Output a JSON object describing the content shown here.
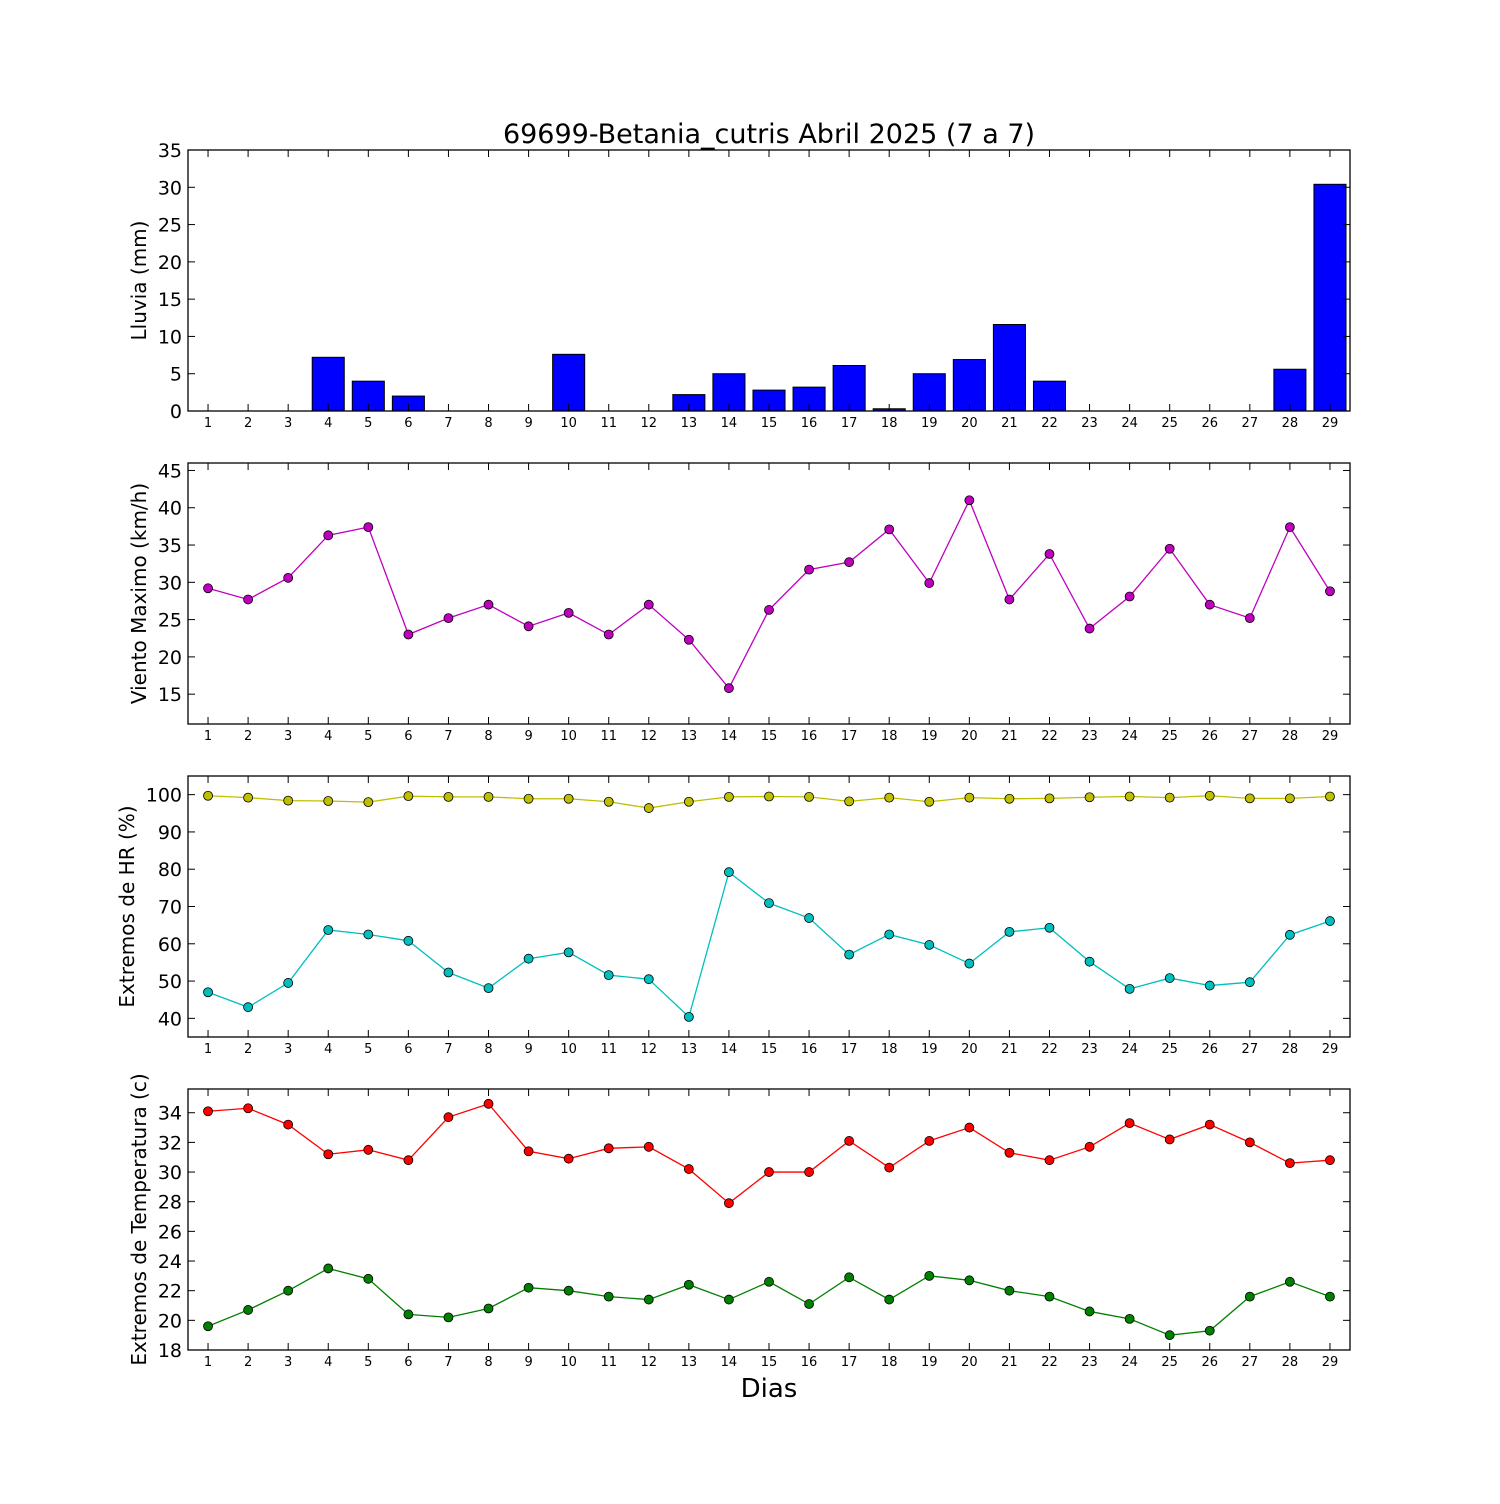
{
  "figure": {
    "title": "69699-Betania_cutris Abril 2025  (7 a 7)",
    "xlabel": "Dias"
  },
  "chart_data": [
    {
      "type": "bar",
      "ylabel": "Lluvia (mm)",
      "ylim": [
        0,
        35
      ],
      "yticks": [
        0,
        5,
        10,
        15,
        20,
        25,
        30,
        35
      ],
      "x": [
        1,
        2,
        3,
        4,
        5,
        6,
        7,
        8,
        9,
        10,
        11,
        12,
        13,
        14,
        15,
        16,
        17,
        18,
        19,
        20,
        21,
        22,
        23,
        24,
        25,
        26,
        27,
        28,
        29
      ],
      "series": [
        {
          "color": "#0000ff",
          "values": [
            0,
            0,
            0,
            7.2,
            4.0,
            2.0,
            0,
            0,
            0,
            7.6,
            0,
            0,
            2.2,
            5.0,
            2.8,
            3.2,
            6.1,
            0.3,
            5.0,
            6.9,
            11.6,
            4.0,
            0,
            0,
            0,
            0,
            0,
            5.6,
            30.4
          ]
        }
      ]
    },
    {
      "type": "line",
      "ylabel": "Viento Maximo (km/h)",
      "ylim": [
        11,
        46
      ],
      "yticks": [
        15,
        20,
        25,
        30,
        35,
        40,
        45
      ],
      "x": [
        1,
        2,
        3,
        4,
        5,
        6,
        7,
        8,
        9,
        10,
        11,
        12,
        13,
        14,
        15,
        16,
        17,
        18,
        19,
        20,
        21,
        22,
        23,
        24,
        25,
        26,
        27,
        28,
        29
      ],
      "series": [
        {
          "color": "#bf00bf",
          "values": [
            29.2,
            27.7,
            30.6,
            36.3,
            37.4,
            23.0,
            25.2,
            27.0,
            24.1,
            25.9,
            23.0,
            27.0,
            22.3,
            15.8,
            26.3,
            31.7,
            32.7,
            37.1,
            29.9,
            41.0,
            27.7,
            33.8,
            23.8,
            28.1,
            34.5,
            27.0,
            25.2,
            37.4,
            28.8
          ]
        }
      ]
    },
    {
      "type": "line",
      "ylabel": "Extremos de HR (%)",
      "ylim": [
        35,
        105
      ],
      "yticks": [
        40,
        50,
        60,
        70,
        80,
        90,
        100
      ],
      "x": [
        1,
        2,
        3,
        4,
        5,
        6,
        7,
        8,
        9,
        10,
        11,
        12,
        13,
        14,
        15,
        16,
        17,
        18,
        19,
        20,
        21,
        22,
        23,
        24,
        25,
        26,
        27,
        28,
        29
      ],
      "series": [
        {
          "color": "#bfbf00",
          "values": [
            99.7,
            99.2,
            98.4,
            98.3,
            98.0,
            99.6,
            99.4,
            99.4,
            98.9,
            98.9,
            98.1,
            96.4,
            98.1,
            99.4,
            99.5,
            99.4,
            98.2,
            99.2,
            98.1,
            99.2,
            98.9,
            99.0,
            99.3,
            99.5,
            99.2,
            99.7,
            99.0,
            99.0,
            99.5
          ]
        },
        {
          "color": "#00bfbf",
          "values": [
            47.0,
            43.0,
            49.5,
            63.7,
            62.5,
            60.8,
            52.3,
            48.1,
            56.0,
            57.7,
            51.6,
            50.5,
            40.4,
            79.2,
            70.9,
            66.9,
            57.1,
            62.5,
            59.7,
            54.7,
            63.2,
            64.3,
            55.2,
            47.9,
            50.8,
            48.8,
            49.7,
            62.4,
            66.1
          ]
        }
      ]
    },
    {
      "type": "line",
      "ylabel": "Extremos de Temperatura (c)",
      "ylim": [
        18,
        35.6
      ],
      "yticks": [
        18,
        20,
        22,
        24,
        26,
        28,
        30,
        32,
        34
      ],
      "x": [
        1,
        2,
        3,
        4,
        5,
        6,
        7,
        8,
        9,
        10,
        11,
        12,
        13,
        14,
        15,
        16,
        17,
        18,
        19,
        20,
        21,
        22,
        23,
        24,
        25,
        26,
        27,
        28,
        29
      ],
      "series": [
        {
          "color": "#ff0000",
          "values": [
            34.1,
            34.3,
            33.2,
            31.2,
            31.5,
            30.8,
            33.7,
            34.6,
            31.4,
            30.9,
            31.6,
            31.7,
            30.2,
            27.9,
            30.0,
            30.0,
            32.1,
            30.3,
            32.1,
            33.0,
            31.3,
            30.8,
            31.7,
            33.3,
            32.2,
            33.2,
            32.0,
            30.6,
            30.8
          ]
        },
        {
          "color": "#008000",
          "values": [
            19.6,
            20.7,
            22.0,
            23.5,
            22.8,
            20.4,
            20.2,
            20.8,
            22.2,
            22.0,
            21.6,
            21.4,
            22.4,
            21.4,
            22.6,
            21.1,
            22.9,
            21.4,
            23.0,
            22.7,
            22.0,
            21.6,
            20.6,
            20.1,
            19.0,
            19.3,
            21.6,
            22.6,
            21.6
          ]
        }
      ]
    }
  ]
}
